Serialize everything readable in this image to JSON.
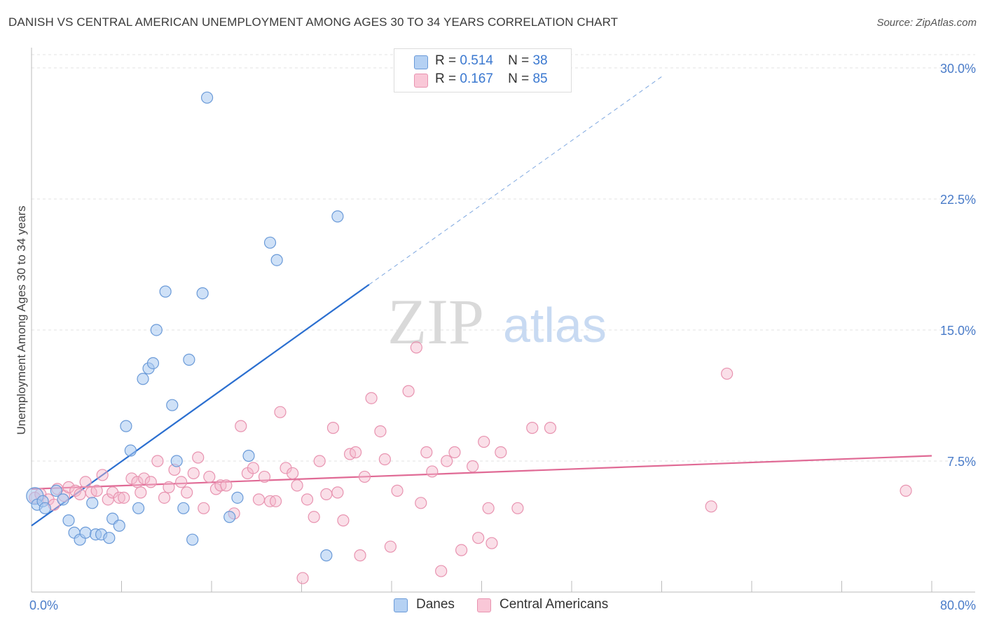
{
  "title": "DANISH VS CENTRAL AMERICAN UNEMPLOYMENT AMONG AGES 30 TO 34 YEARS CORRELATION CHART",
  "source": "Source: ZipAtlas.com",
  "watermark": {
    "zip": "ZIP",
    "atlas": "atlas"
  },
  "legend": {
    "danes": {
      "r_label": "R =",
      "r_value": "0.514",
      "n_label": "N =",
      "n_value": "38"
    },
    "central": {
      "r_label": "R =",
      "r_value": "0.167",
      "n_label": "N =",
      "n_value": "85"
    }
  },
  "bottom_legend": {
    "danes": "Danes",
    "central": "Central Americans"
  },
  "colors": {
    "danes_fill": "#a8c8f0",
    "danes_stroke": "#6a9ad8",
    "danes_line": "#2b6fd0",
    "central_fill": "#f5b8cc",
    "central_stroke": "#e893b0",
    "central_line": "#e06a95",
    "axis_text": "#4a7cc9",
    "grid": "#e3e3e3"
  },
  "chart_data": {
    "type": "scatter",
    "title": "DANISH VS CENTRAL AMERICAN UNEMPLOYMENT AMONG AGES 30 TO 34 YEARS CORRELATION CHART",
    "xlabel": "",
    "ylabel": "Unemployment Among Ages 30 to 34 years",
    "xlim": [
      0,
      80
    ],
    "ylim": [
      0,
      31
    ],
    "x_tick_labels": [
      "0.0%",
      "80.0%"
    ],
    "y_ticks": [
      7.5,
      15.0,
      22.5,
      30.0
    ],
    "y_tick_labels": [
      "7.5%",
      "15.0%",
      "22.5%",
      "30.0%"
    ],
    "grid": true,
    "legend_position": "top-center",
    "series": [
      {
        "name": "Danes",
        "r": 0.514,
        "n": 38,
        "trend": {
          "x0": 0,
          "y0": 3.8,
          "x1": 30,
          "y1": 17.6,
          "dashed_to_x": 56,
          "dashed_to_y": 29.5
        },
        "points": [
          [
            0.3,
            5.5
          ],
          [
            0.5,
            5.0
          ],
          [
            1.0,
            5.2
          ],
          [
            1.2,
            4.8
          ],
          [
            2.2,
            5.8
          ],
          [
            2.8,
            5.3
          ],
          [
            3.3,
            4.1
          ],
          [
            3.8,
            3.4
          ],
          [
            4.3,
            3.0
          ],
          [
            4.8,
            3.4
          ],
          [
            5.4,
            5.1
          ],
          [
            5.7,
            3.3
          ],
          [
            6.2,
            3.3
          ],
          [
            6.9,
            3.1
          ],
          [
            7.2,
            4.2
          ],
          [
            7.8,
            3.8
          ],
          [
            8.4,
            9.5
          ],
          [
            8.8,
            8.1
          ],
          [
            9.5,
            4.8
          ],
          [
            9.9,
            12.2
          ],
          [
            10.4,
            12.8
          ],
          [
            10.8,
            13.1
          ],
          [
            11.1,
            15.0
          ],
          [
            11.9,
            17.2
          ],
          [
            12.5,
            10.7
          ],
          [
            12.9,
            7.5
          ],
          [
            13.5,
            4.8
          ],
          [
            14.0,
            13.3
          ],
          [
            14.3,
            3.0
          ],
          [
            15.2,
            17.1
          ],
          [
            15.6,
            28.3
          ],
          [
            17.6,
            4.3
          ],
          [
            18.3,
            5.4
          ],
          [
            19.3,
            7.8
          ],
          [
            21.2,
            20.0
          ],
          [
            21.8,
            19.0
          ],
          [
            26.2,
            2.1
          ],
          [
            27.2,
            21.5
          ]
        ]
      },
      {
        "name": "Central Americans",
        "r": 0.167,
        "n": 85,
        "trend": {
          "x0": 0,
          "y0": 5.9,
          "x1": 80,
          "y1": 7.8
        },
        "points": [
          [
            0.3,
            5.4
          ],
          [
            0.8,
            5.6
          ],
          [
            1.5,
            5.3
          ],
          [
            2.3,
            5.9
          ],
          [
            2.9,
            5.5
          ],
          [
            3.3,
            6.0
          ],
          [
            3.9,
            5.8
          ],
          [
            4.3,
            5.6
          ],
          [
            4.8,
            6.3
          ],
          [
            5.3,
            5.7
          ],
          [
            5.8,
            5.8
          ],
          [
            6.3,
            6.7
          ],
          [
            6.8,
            5.3
          ],
          [
            7.2,
            5.7
          ],
          [
            7.8,
            5.4
          ],
          [
            8.2,
            5.4
          ],
          [
            8.9,
            6.5
          ],
          [
            9.4,
            6.3
          ],
          [
            9.7,
            5.7
          ],
          [
            10.0,
            6.5
          ],
          [
            10.6,
            6.3
          ],
          [
            11.2,
            7.5
          ],
          [
            11.8,
            5.4
          ],
          [
            12.2,
            6.0
          ],
          [
            12.7,
            7.0
          ],
          [
            13.3,
            6.3
          ],
          [
            13.8,
            5.7
          ],
          [
            14.4,
            6.8
          ],
          [
            14.8,
            7.7
          ],
          [
            15.3,
            4.8
          ],
          [
            15.8,
            6.6
          ],
          [
            16.4,
            5.9
          ],
          [
            16.8,
            6.1
          ],
          [
            17.3,
            6.1
          ],
          [
            18.0,
            4.5
          ],
          [
            18.6,
            9.5
          ],
          [
            19.2,
            6.8
          ],
          [
            19.7,
            7.1
          ],
          [
            20.2,
            5.3
          ],
          [
            20.7,
            6.6
          ],
          [
            21.2,
            5.2
          ],
          [
            21.7,
            5.2
          ],
          [
            22.1,
            10.3
          ],
          [
            22.6,
            7.1
          ],
          [
            23.2,
            6.8
          ],
          [
            23.6,
            6.1
          ],
          [
            24.1,
            0.8
          ],
          [
            24.5,
            5.3
          ],
          [
            25.1,
            4.3
          ],
          [
            25.6,
            7.5
          ],
          [
            26.2,
            5.6
          ],
          [
            26.8,
            9.4
          ],
          [
            27.2,
            5.7
          ],
          [
            27.7,
            4.1
          ],
          [
            28.3,
            7.9
          ],
          [
            28.8,
            8.0
          ],
          [
            29.2,
            2.1
          ],
          [
            29.6,
            6.6
          ],
          [
            30.2,
            11.1
          ],
          [
            31.0,
            9.2
          ],
          [
            31.4,
            7.6
          ],
          [
            31.9,
            2.6
          ],
          [
            32.5,
            5.8
          ],
          [
            33.5,
            11.5
          ],
          [
            34.2,
            14.0
          ],
          [
            34.6,
            5.1
          ],
          [
            35.1,
            8.0
          ],
          [
            35.6,
            6.9
          ],
          [
            36.4,
            1.2
          ],
          [
            36.9,
            7.5
          ],
          [
            37.6,
            8.0
          ],
          [
            38.2,
            2.4
          ],
          [
            39.2,
            7.2
          ],
          [
            39.7,
            3.1
          ],
          [
            40.2,
            8.6
          ],
          [
            40.6,
            4.8
          ],
          [
            40.9,
            2.8
          ],
          [
            41.7,
            8.0
          ],
          [
            43.2,
            4.8
          ],
          [
            44.5,
            9.4
          ],
          [
            46.1,
            9.4
          ],
          [
            60.4,
            4.9
          ],
          [
            61.8,
            12.5
          ],
          [
            77.7,
            5.8
          ],
          [
            2.0,
            5.0
          ]
        ]
      }
    ]
  }
}
